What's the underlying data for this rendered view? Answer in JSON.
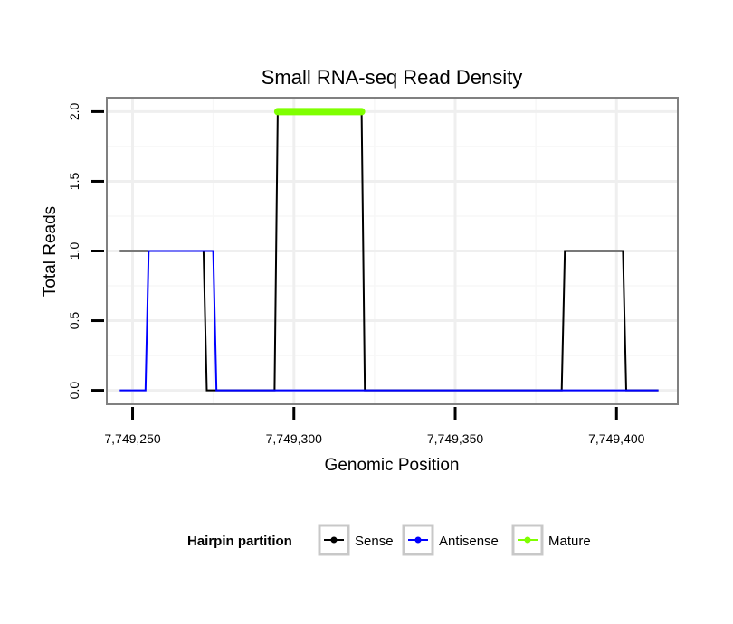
{
  "chart_data": {
    "type": "line",
    "title": "Small RNA-seq Read Density",
    "xlabel": "Genomic Position",
    "ylabel": "Total Reads",
    "xlim": [
      7749242,
      7749419
    ],
    "ylim": [
      -0.1,
      2.1
    ],
    "xticks": [
      7749250,
      7749300,
      7749350,
      7749400
    ],
    "xtick_labels": [
      "7,749,250",
      "7,749,300",
      "7,749,350",
      "7,749,400"
    ],
    "yticks": [
      0,
      0.5,
      1,
      1.5,
      2
    ],
    "ytick_labels": [
      "0.0",
      "0.5",
      "1.0",
      "1.5",
      "2.0"
    ],
    "grid": true,
    "legend": {
      "title": "Hairpin partition",
      "position": "bottom",
      "entries": [
        "Sense",
        "Antisense",
        "Mature"
      ]
    },
    "series": [
      {
        "name": "Sense",
        "color": "#000000",
        "x": [
          7749246,
          7749272,
          7749273,
          7749294,
          7749295,
          7749321,
          7749322,
          7749383,
          7749384,
          7749402,
          7749403,
          7749413
        ],
        "y": [
          1,
          1,
          0,
          0,
          2,
          2,
          0,
          0,
          1,
          1,
          0,
          0
        ]
      },
      {
        "name": "Antisense",
        "color": "#0000ff",
        "x": [
          7749246,
          7749254,
          7749255,
          7749275,
          7749276,
          7749413
        ],
        "y": [
          0,
          0,
          1,
          1,
          0,
          0
        ]
      },
      {
        "name": "Mature",
        "color": "#7fff00",
        "x": [
          7749295,
          7749321
        ],
        "y": [
          2,
          2
        ]
      }
    ]
  }
}
